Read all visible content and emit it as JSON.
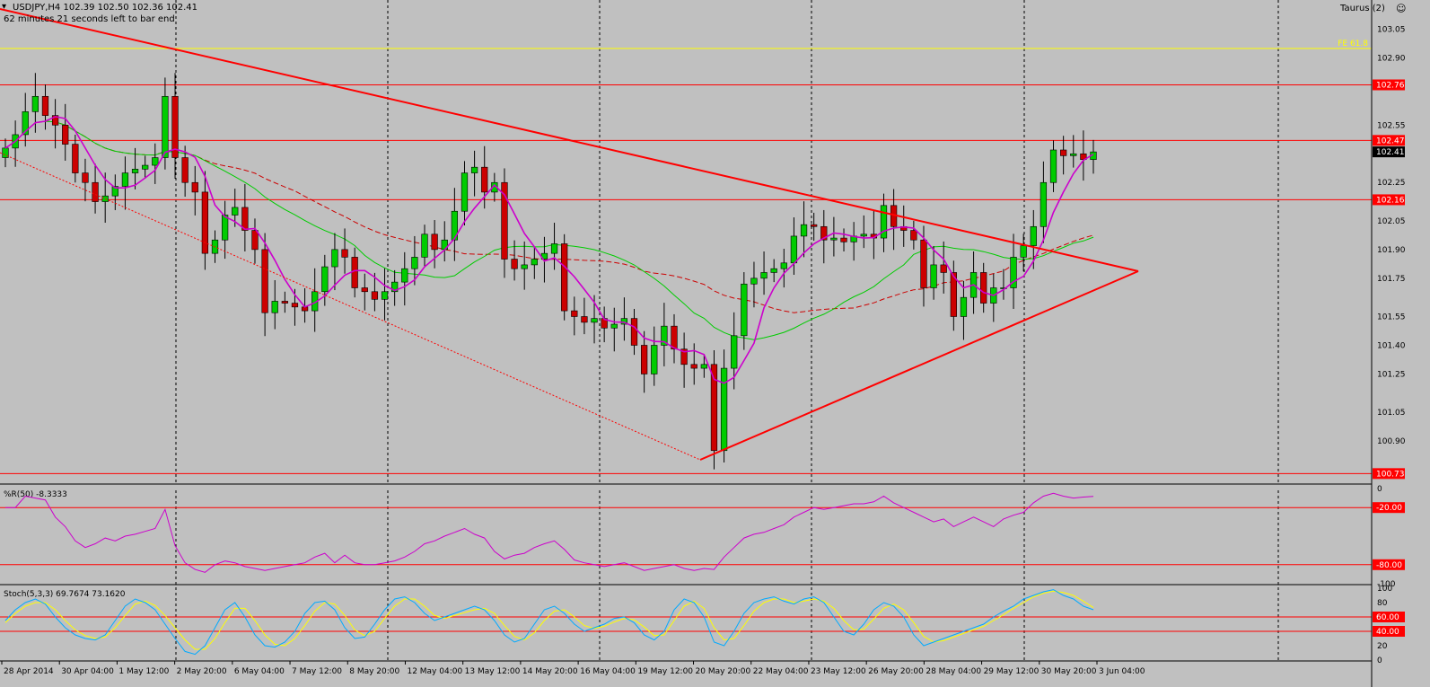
{
  "colors": {
    "background": "#c0c0c0",
    "bull_candle": "#00cc00",
    "bear_candle": "#cc0000",
    "level_line": "#ff0000",
    "fe_line": "#ffff00",
    "ma_fast": "#cc00cc",
    "ma_slow_green": "#00cc00",
    "ma_slow_red": "#cc0000",
    "stoch_main": "#00aaff",
    "stoch_signal": "#ffff00"
  },
  "header": {
    "symbol_line": "USDJPY,H4  102.39 102.50 102.36 102.41",
    "timer_text": "62 minutes 21 seconds left to bar end",
    "indicator_name": "Taurus (2)",
    "smiley_icon": "smiley-icon"
  },
  "chart_data": [
    {
      "type": "candlestick",
      "title": "USDJPY,H4",
      "ylim": [
        100.68,
        103.1
      ],
      "y_ticks": [
        "103.05",
        "102.90",
        "102.55",
        "102.25",
        "102.05",
        "101.90",
        "101.75",
        "101.55",
        "101.40",
        "101.25",
        "101.05",
        "100.90"
      ],
      "y_tick_values": [
        103.05,
        102.9,
        102.55,
        102.25,
        102.05,
        101.9,
        101.75,
        101.55,
        101.4,
        101.25,
        101.05,
        100.9
      ],
      "x_ticks": [
        "28 Apr 2014",
        "30 Apr 04:00",
        "1 May 12:00",
        "2 May 20:00",
        "6 May 04:00",
        "7 May 12:00",
        "8 May 20:00",
        "12 May 04:00",
        "13 May 12:00",
        "14 May 20:00",
        "16 May 04:00",
        "19 May 12:00",
        "20 May 20:00",
        "22 May 04:00",
        "23 May 12:00",
        "26 May 20:00",
        "28 May 04:00",
        "29 May 12:00",
        "30 May 20:00",
        "3 Jun 04:00"
      ],
      "levels": [
        {
          "label": "102.76",
          "value": 102.76,
          "kind": "red"
        },
        {
          "label": "102.47",
          "value": 102.47,
          "kind": "red"
        },
        {
          "label": "102.41",
          "value": 102.41,
          "kind": "price"
        },
        {
          "label": "102.16",
          "value": 102.16,
          "kind": "red"
        },
        {
          "label": "100.73",
          "value": 100.73,
          "kind": "red"
        }
      ],
      "fe_line": {
        "label": "FE 61.8",
        "value": 102.95
      },
      "closes": [
        102.43,
        102.5,
        102.62,
        102.7,
        102.6,
        102.55,
        102.45,
        102.3,
        102.25,
        102.15,
        102.18,
        102.23,
        102.3,
        102.32,
        102.34,
        102.38,
        102.7,
        102.38,
        102.25,
        102.2,
        101.88,
        101.95,
        102.08,
        102.12,
        102.0,
        101.9,
        101.57,
        101.63,
        101.62,
        101.6,
        101.58,
        101.68,
        101.81,
        101.9,
        101.86,
        101.7,
        101.68,
        101.64,
        101.68,
        101.73,
        101.8,
        101.86,
        101.98,
        101.9,
        101.95,
        102.1,
        102.3,
        102.33,
        102.2,
        102.25,
        101.85,
        101.8,
        101.82,
        101.85,
        101.88,
        101.93,
        101.58,
        101.55,
        101.52,
        101.54,
        101.49,
        101.51,
        101.54,
        101.4,
        101.25,
        101.4,
        101.5,
        101.38,
        101.3,
        101.28,
        101.3,
        100.85,
        101.28,
        101.45,
        101.72,
        101.75,
        101.78,
        101.8,
        101.83,
        101.97,
        102.03,
        102.02,
        101.95,
        101.96,
        101.94,
        101.97,
        101.98,
        101.96,
        102.13,
        102.02,
        102.0,
        101.95,
        101.7,
        101.82,
        101.78,
        101.55,
        101.65,
        101.78,
        101.62,
        101.7,
        101.7,
        101.86,
        101.92,
        102.02,
        102.25,
        102.42,
        102.39,
        102.4,
        102.37,
        102.41
      ]
    },
    {
      "type": "line",
      "title": "%R(50) -8.3333",
      "ylim": [
        -100,
        0
      ],
      "y_ticks": [
        "0",
        "-20.00",
        "-80.00",
        "-100"
      ],
      "y_tick_values": [
        0,
        -20,
        -80,
        -100
      ],
      "levels": [
        -20,
        -80
      ],
      "series": [
        {
          "name": "%R(50)",
          "values": [
            -20,
            -20,
            -8,
            -10,
            -12,
            -30,
            -40,
            -55,
            -62,
            -58,
            -52,
            -55,
            -50,
            -48,
            -45,
            -42,
            -22,
            -60,
            -78,
            -85,
            -88,
            -80,
            -76,
            -78,
            -82,
            -84,
            -86,
            -84,
            -82,
            -80,
            -78,
            -72,
            -68,
            -78,
            -70,
            -78,
            -80,
            -80,
            -78,
            -76,
            -72,
            -66,
            -58,
            -55,
            -50,
            -46,
            -42,
            -48,
            -52,
            -66,
            -74,
            -70,
            -68,
            -62,
            -58,
            -55,
            -64,
            -75,
            -78,
            -80,
            -82,
            -80,
            -78,
            -82,
            -86,
            -84,
            -82,
            -80,
            -84,
            -86,
            -84,
            -85,
            -72,
            -62,
            -52,
            -48,
            -46,
            -42,
            -38,
            -30,
            -25,
            -20,
            -22,
            -20,
            -18,
            -16,
            -16,
            -14,
            -8,
            -15,
            -20,
            -25,
            -30,
            -35,
            -32,
            -40,
            -35,
            -30,
            -35,
            -40,
            -32,
            -28,
            -25,
            -15,
            -8,
            -5,
            -8,
            -10,
            -9,
            -8.3333
          ]
        }
      ]
    },
    {
      "type": "line",
      "title": "Stoch(5,3,3) 69.7674 73.1620",
      "ylim": [
        0,
        100
      ],
      "y_ticks": [
        "100",
        "80",
        "60.00",
        "40.00",
        "20",
        "0"
      ],
      "y_tick_values": [
        100,
        80,
        60,
        40,
        20,
        0
      ],
      "levels": [
        60,
        40
      ],
      "series": [
        {
          "name": "Stoch main",
          "values": [
            55,
            70,
            80,
            85,
            78,
            60,
            45,
            35,
            30,
            28,
            35,
            55,
            75,
            85,
            80,
            70,
            50,
            30,
            12,
            8,
            20,
            45,
            70,
            80,
            60,
            35,
            20,
            18,
            25,
            40,
            65,
            80,
            82,
            70,
            45,
            30,
            32,
            50,
            70,
            85,
            88,
            80,
            65,
            55,
            60,
            65,
            70,
            75,
            70,
            55,
            35,
            25,
            30,
            50,
            70,
            75,
            65,
            50,
            40,
            45,
            50,
            58,
            60,
            52,
            35,
            28,
            40,
            70,
            85,
            80,
            60,
            25,
            20,
            40,
            65,
            80,
            85,
            88,
            82,
            78,
            85,
            88,
            80,
            60,
            40,
            35,
            50,
            70,
            80,
            75,
            60,
            35,
            20,
            25,
            30,
            35,
            40,
            45,
            50,
            60,
            68,
            75,
            85,
            90,
            95,
            98,
            90,
            85,
            75,
            70
          ]
        },
        {
          "name": "Stoch signal",
          "values": [
            52,
            65,
            75,
            80,
            80,
            70,
            55,
            42,
            34,
            30,
            32,
            45,
            62,
            78,
            82,
            76,
            62,
            45,
            28,
            15,
            15,
            30,
            52,
            72,
            72,
            55,
            35,
            22,
            20,
            30,
            48,
            68,
            80,
            78,
            62,
            42,
            34,
            40,
            58,
            75,
            85,
            85,
            75,
            62,
            58,
            62,
            66,
            70,
            72,
            65,
            48,
            33,
            28,
            38,
            55,
            68,
            70,
            60,
            48,
            44,
            47,
            53,
            58,
            56,
            46,
            34,
            35,
            55,
            75,
            82,
            72,
            45,
            28,
            30,
            48,
            68,
            80,
            85,
            85,
            80,
            82,
            85,
            82,
            72,
            55,
            42,
            43,
            57,
            72,
            78,
            70,
            52,
            33,
            25,
            27,
            32,
            37,
            42,
            47,
            55,
            63,
            72,
            80,
            88,
            93,
            96,
            94,
            90,
            82,
            73
          ]
        }
      ]
    }
  ]
}
